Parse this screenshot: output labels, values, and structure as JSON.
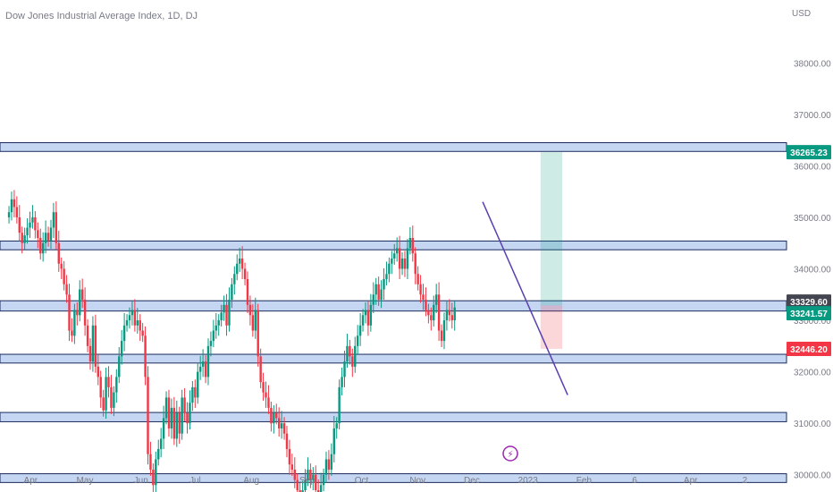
{
  "chart_data": {
    "type": "candlestick",
    "title": "Dow Jones Industrial Average Index, 1D, DJ",
    "currency_label": "USD",
    "y_ticks": [
      "38000.00",
      "37000.00",
      "36000.00",
      "35000.00",
      "34000.00",
      "33000.00",
      "32000.00",
      "31000.00",
      "30000.00"
    ],
    "y_tick_values": [
      38000,
      37000,
      36000,
      35000,
      34000,
      33000,
      32000,
      31000,
      30000
    ],
    "ylim": [
      29700,
      38700
    ],
    "x_ticks": [
      "Apr",
      "May",
      "Jun",
      "Jul",
      "Aug",
      "Sep",
      "Oct",
      "Nov",
      "Dec",
      "2023",
      "Feb",
      "6",
      "Apr",
      "2"
    ],
    "x_tick_days": [
      0,
      30,
      61,
      91,
      122,
      153,
      183,
      214,
      244,
      275,
      306,
      334,
      365,
      395
    ],
    "xlim_days": [
      -14,
      421
    ],
    "grid": false,
    "price_tags": [
      {
        "label": "36265.23",
        "value": 36265.23,
        "color": "#089981"
      },
      {
        "label": "33329.60",
        "value": 33329.6,
        "color": "#434651"
      },
      {
        "label": "33241.57",
        "value": 33241.57,
        "color": "#089981"
      },
      {
        "label": "32446.20",
        "value": 32446.2,
        "color": "#f23645"
      }
    ],
    "horizontal_zones": [
      {
        "top": 36450,
        "bottom": 36280
      },
      {
        "top": 34540,
        "bottom": 34370
      },
      {
        "top": 33380,
        "bottom": 33180
      },
      {
        "top": 32340,
        "bottom": 32170
      },
      {
        "top": 31210,
        "bottom": 31030
      },
      {
        "top": 30020,
        "bottom": 29850
      }
    ],
    "trendline": {
      "start": {
        "day": 250,
        "value": 35300
      },
      "end": {
        "day": 297,
        "value": 31550
      }
    },
    "position": {
      "start_day": 282,
      "end_day": 294,
      "entry": 33290,
      "target": 36265.23,
      "stop": 32446.2
    },
    "up_color": "#089981",
    "down_color": "#f23645",
    "candles_daily_closes_start_day": -12,
    "closes": [
      35100,
      35350,
      35200,
      35000,
      34700,
      34500,
      34650,
      34800,
      34900,
      35000,
      34750,
      34600,
      34300,
      34500,
      34700,
      34550,
      34800,
      35100,
      34500,
      34100,
      34000,
      33700,
      33500,
      32800,
      32700,
      33200,
      33100,
      33600,
      33400,
      32900,
      32500,
      32200,
      32900,
      32100,
      31900,
      31500,
      31250,
      31900,
      31700,
      31300,
      31600,
      31900,
      32300,
      32600,
      32900,
      33000,
      33100,
      33200,
      32900,
      33000,
      32800,
      32700,
      31900,
      30400,
      30100,
      29800,
      30300,
      30500,
      30700,
      31100,
      31500,
      30900,
      31300,
      30700,
      31200,
      30800,
      31500,
      31200,
      31000,
      31400,
      31700,
      31500,
      32000,
      32100,
      32200,
      31900,
      32500,
      32600,
      32800,
      32900,
      33000,
      33150,
      33300,
      32900,
      33400,
      33700,
      33900,
      34100,
      34200,
      34000,
      33800,
      33300,
      33100,
      32800,
      33200,
      32300,
      31800,
      31600,
      31500,
      31300,
      31000,
      31200,
      31100,
      30900,
      31000,
      30800,
      30500,
      30200,
      30100,
      29900,
      29700,
      29500,
      29700,
      29900,
      30100,
      29900,
      30000,
      29700,
      29500,
      29800,
      30000,
      30300,
      30100,
      30400,
      30900,
      31000,
      31700,
      31900,
      32200,
      32500,
      32300,
      32100,
      32500,
      32700,
      32900,
      33100,
      33200,
      32900,
      33300,
      33500,
      33700,
      33400,
      33600,
      33800,
      33900,
      34100,
      34200,
      34300,
      34400,
      34000,
      34200,
      34000,
      34400,
      34600,
      34300,
      33900,
      33700,
      33500,
      33400,
      33200,
      33100,
      33000,
      33300,
      33500,
      32800,
      32600,
      33000,
      33200,
      33100,
      33000,
      33250
    ]
  }
}
